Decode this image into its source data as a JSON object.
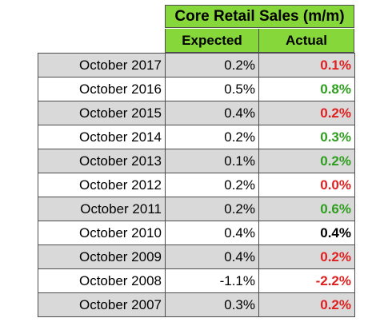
{
  "table": {
    "title": "Core Retail Sales (m/m)",
    "headers": {
      "expected": "Expected",
      "actual": "Actual"
    },
    "rows": [
      {
        "period": "October 2017",
        "expected": "0.2%",
        "actual": "0.1%",
        "actual_color": "#e02020"
      },
      {
        "period": "October 2016",
        "expected": "0.5%",
        "actual": "0.8%",
        "actual_color": "#2e9e1e"
      },
      {
        "period": "October 2015",
        "expected": "0.4%",
        "actual": "0.2%",
        "actual_color": "#e02020"
      },
      {
        "period": "October 2014",
        "expected": "0.2%",
        "actual": "0.3%",
        "actual_color": "#2e9e1e"
      },
      {
        "period": "October 2013",
        "expected": "0.1%",
        "actual": "0.2%",
        "actual_color": "#2e9e1e"
      },
      {
        "period": "October 2012",
        "expected": "0.2%",
        "actual": "0.0%",
        "actual_color": "#e02020"
      },
      {
        "period": "October 2011",
        "expected": "0.2%",
        "actual": "0.6%",
        "actual_color": "#2e9e1e"
      },
      {
        "period": "October 2010",
        "expected": "0.4%",
        "actual": "0.4%",
        "actual_color": "#000000"
      },
      {
        "period": "October 2009",
        "expected": "0.4%",
        "actual": "0.2%",
        "actual_color": "#e02020"
      },
      {
        "period": "October 2008",
        "expected": "-1.1%",
        "actual": "-2.2%",
        "actual_color": "#e02020"
      },
      {
        "period": "October 2007",
        "expected": "0.3%",
        "actual": "0.2%",
        "actual_color": "#e02020"
      }
    ]
  },
  "colors": {
    "header_green": "#86d73a",
    "row_shade": "#d9d9d9",
    "positive": "#2e9e1e",
    "negative": "#e02020",
    "neutral": "#000000"
  }
}
